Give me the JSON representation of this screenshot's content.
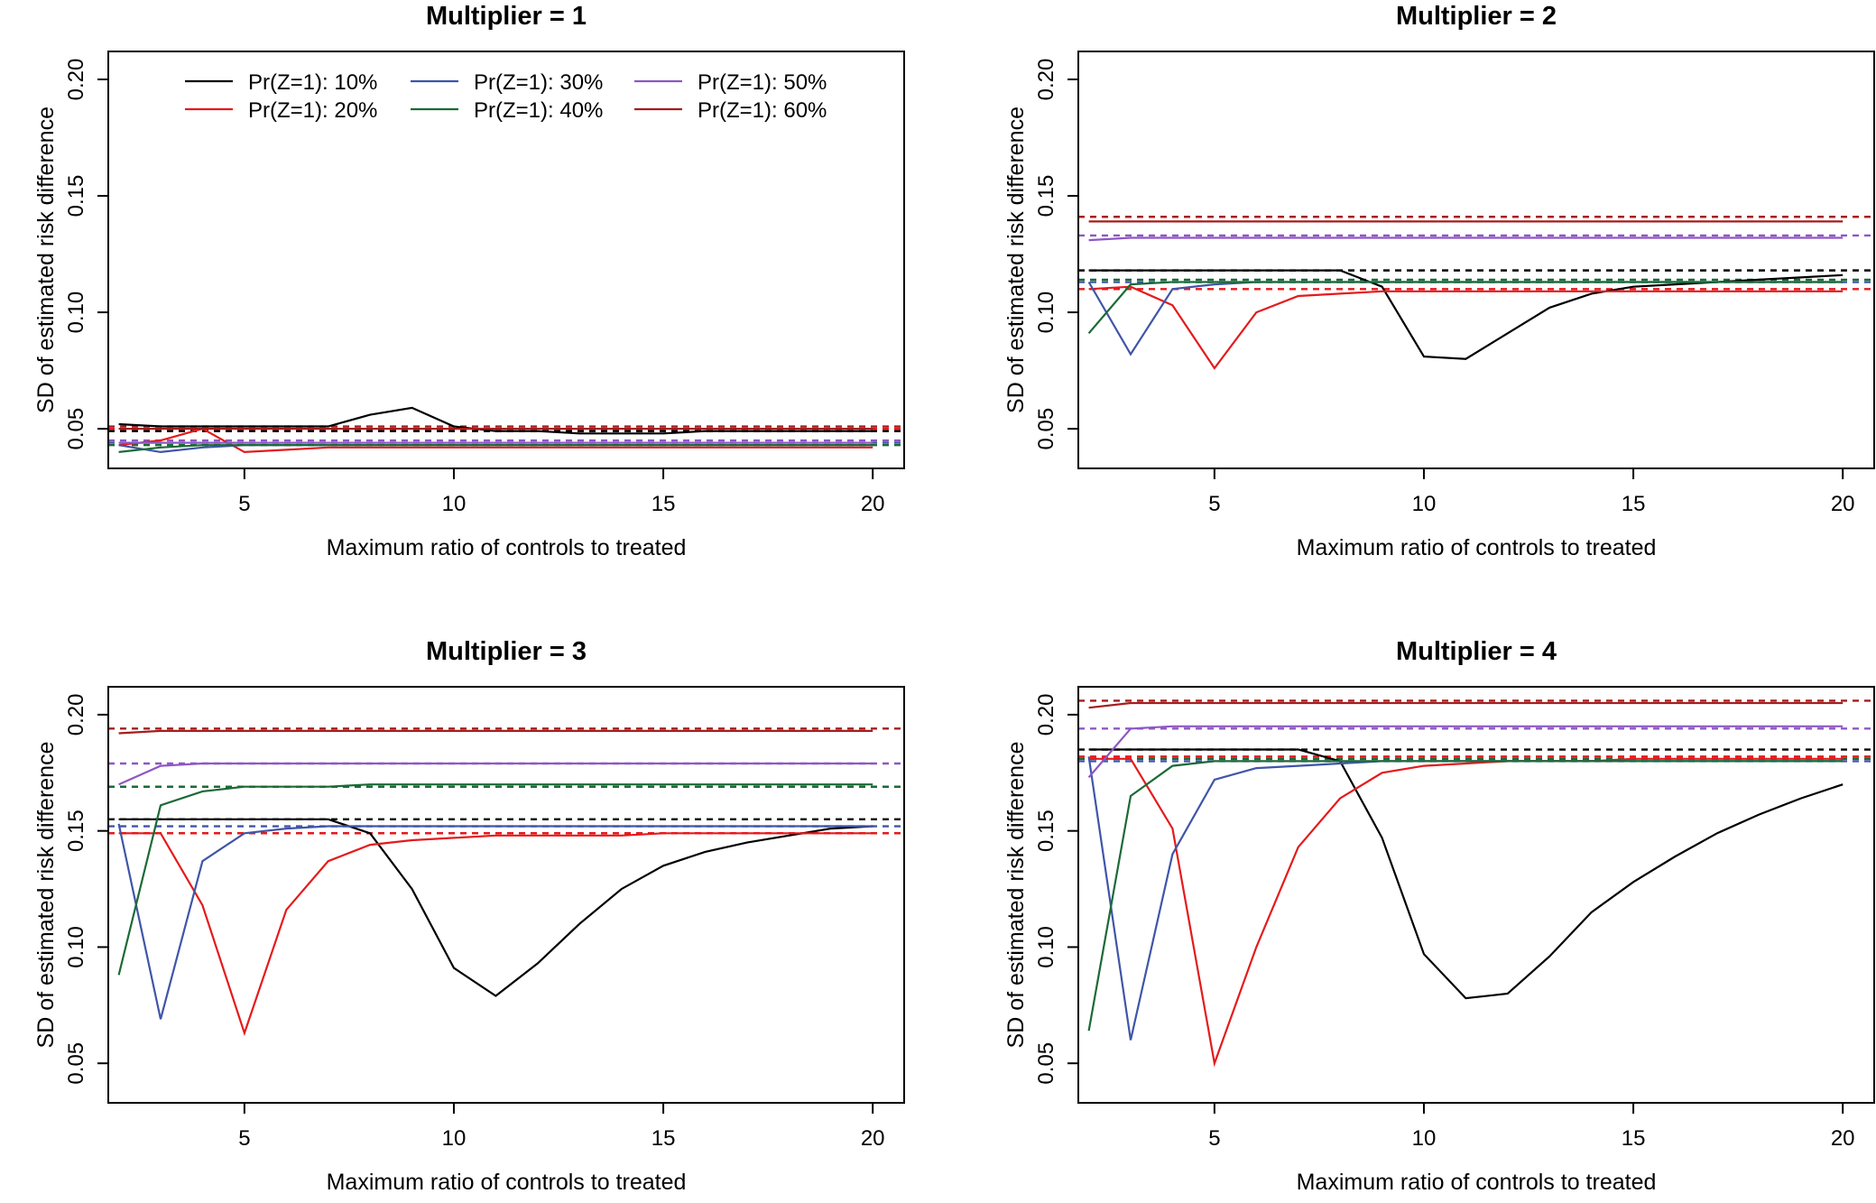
{
  "chart_data": [
    {
      "type": "line",
      "title": "Multiplier = 1",
      "xlabel": "Maximum ratio of controls to treated",
      "ylabel": "SD of estimated risk difference",
      "xlim": [
        1.75,
        20.75
      ],
      "ylim": [
        0.033,
        0.212
      ],
      "xticks": [
        "5",
        "10",
        "15",
        "20"
      ],
      "yticks": [
        "0.05",
        "0.10",
        "0.15",
        "0.20"
      ],
      "legend_position": "top",
      "x": [
        2,
        3,
        4,
        5,
        6,
        7,
        8,
        9,
        10,
        11,
        12,
        13,
        14,
        15,
        16,
        17,
        18,
        19,
        20
      ],
      "series": [
        {
          "name": "Pr(Z=1): 10%",
          "color": "#000000",
          "reference": 0.049,
          "values": [
            0.052,
            0.051,
            0.051,
            0.051,
            0.051,
            0.051,
            0.056,
            0.059,
            0.051,
            0.049,
            0.049,
            0.048,
            0.048,
            0.048,
            0.049,
            0.049,
            0.049,
            0.049,
            0.049
          ]
        },
        {
          "name": "Pr(Z=1): 20%",
          "color": "#E41A1C",
          "reference": 0.05,
          "values": [
            0.043,
            0.045,
            0.05,
            0.04,
            0.041,
            0.042,
            0.042,
            0.042,
            0.042,
            0.042,
            0.042,
            0.042,
            0.042,
            0.042,
            0.042,
            0.042,
            0.042,
            0.042,
            0.042
          ]
        },
        {
          "name": "Pr(Z=1): 30%",
          "color": "#3F55A8",
          "reference": 0.044,
          "values": [
            0.043,
            0.04,
            0.042,
            0.043,
            0.043,
            0.043,
            0.043,
            0.043,
            0.043,
            0.043,
            0.043,
            0.043,
            0.043,
            0.043,
            0.043,
            0.043,
            0.043,
            0.043,
            0.043
          ]
        },
        {
          "name": "Pr(Z=1): 40%",
          "color": "#1B6A36",
          "reference": 0.043,
          "values": [
            0.04,
            0.042,
            0.043,
            0.043,
            0.043,
            0.043,
            0.043,
            0.043,
            0.043,
            0.043,
            0.043,
            0.043,
            0.043,
            0.043,
            0.043,
            0.043,
            0.043,
            0.043,
            0.043
          ]
        },
        {
          "name": "Pr(Z=1): 50%",
          "color": "#8E57C4",
          "reference": 0.045,
          "values": [
            0.044,
            0.044,
            0.044,
            0.044,
            0.044,
            0.044,
            0.044,
            0.044,
            0.044,
            0.044,
            0.044,
            0.044,
            0.044,
            0.044,
            0.044,
            0.044,
            0.044,
            0.044,
            0.044
          ]
        },
        {
          "name": "Pr(Z=1): 60%",
          "color": "#A51C1C",
          "reference": 0.051,
          "values": [
            0.05,
            0.05,
            0.05,
            0.05,
            0.05,
            0.05,
            0.05,
            0.05,
            0.05,
            0.05,
            0.05,
            0.05,
            0.05,
            0.05,
            0.05,
            0.05,
            0.05,
            0.05,
            0.05
          ]
        }
      ]
    },
    {
      "type": "line",
      "title": "Multiplier = 2",
      "xlabel": "Maximum ratio of controls to treated",
      "ylabel": "SD of estimated risk difference",
      "xlim": [
        1.75,
        20.75
      ],
      "ylim": [
        0.033,
        0.212
      ],
      "xticks": [
        "5",
        "10",
        "15",
        "20"
      ],
      "yticks": [
        "0.05",
        "0.10",
        "0.15",
        "0.20"
      ],
      "x": [
        2,
        3,
        4,
        5,
        6,
        7,
        8,
        9,
        10,
        11,
        12,
        13,
        14,
        15,
        16,
        17,
        18,
        19,
        20
      ],
      "series": [
        {
          "name": "Pr(Z=1): 10%",
          "color": "#000000",
          "reference": 0.118,
          "values": [
            0.118,
            0.118,
            0.118,
            0.118,
            0.118,
            0.118,
            0.118,
            0.111,
            0.081,
            0.08,
            0.091,
            0.102,
            0.108,
            0.111,
            0.112,
            0.113,
            0.114,
            0.115,
            0.116
          ]
        },
        {
          "name": "Pr(Z=1): 20%",
          "color": "#E41A1C",
          "reference": 0.11,
          "values": [
            0.11,
            0.111,
            0.103,
            0.076,
            0.1,
            0.107,
            0.108,
            0.109,
            0.109,
            0.109,
            0.109,
            0.109,
            0.109,
            0.109,
            0.109,
            0.109,
            0.109,
            0.109,
            0.109
          ]
        },
        {
          "name": "Pr(Z=1): 30%",
          "color": "#3F55A8",
          "reference": 0.113,
          "values": [
            0.113,
            0.082,
            0.11,
            0.112,
            0.113,
            0.113,
            0.113,
            0.113,
            0.113,
            0.113,
            0.113,
            0.113,
            0.113,
            0.113,
            0.113,
            0.113,
            0.113,
            0.113,
            0.113
          ]
        },
        {
          "name": "Pr(Z=1): 40%",
          "color": "#1B6A36",
          "reference": 0.114,
          "values": [
            0.091,
            0.112,
            0.113,
            0.113,
            0.113,
            0.113,
            0.113,
            0.113,
            0.113,
            0.113,
            0.113,
            0.113,
            0.113,
            0.113,
            0.113,
            0.113,
            0.113,
            0.113,
            0.113
          ]
        },
        {
          "name": "Pr(Z=1): 50%",
          "color": "#8E57C4",
          "reference": 0.133,
          "values": [
            0.131,
            0.132,
            0.132,
            0.132,
            0.132,
            0.132,
            0.132,
            0.132,
            0.132,
            0.132,
            0.132,
            0.132,
            0.132,
            0.132,
            0.132,
            0.132,
            0.132,
            0.132,
            0.132
          ]
        },
        {
          "name": "Pr(Z=1): 60%",
          "color": "#A51C1C",
          "reference": 0.141,
          "values": [
            0.139,
            0.139,
            0.139,
            0.139,
            0.139,
            0.139,
            0.139,
            0.139,
            0.139,
            0.139,
            0.139,
            0.139,
            0.139,
            0.139,
            0.139,
            0.139,
            0.139,
            0.139,
            0.139
          ]
        }
      ]
    },
    {
      "type": "line",
      "title": "Multiplier = 3",
      "xlabel": "Maximum ratio of controls to treated",
      "ylabel": "SD of estimated risk difference",
      "xlim": [
        1.75,
        20.75
      ],
      "ylim": [
        0.033,
        0.212
      ],
      "xticks": [
        "5",
        "10",
        "15",
        "20"
      ],
      "yticks": [
        "0.05",
        "0.10",
        "0.15",
        "0.20"
      ],
      "x": [
        2,
        3,
        4,
        5,
        6,
        7,
        8,
        9,
        10,
        11,
        12,
        13,
        14,
        15,
        16,
        17,
        18,
        19,
        20
      ],
      "series": [
        {
          "name": "Pr(Z=1): 10%",
          "color": "#000000",
          "reference": 0.155,
          "values": [
            0.155,
            0.155,
            0.155,
            0.155,
            0.155,
            0.155,
            0.149,
            0.125,
            0.091,
            0.079,
            0.093,
            0.11,
            0.125,
            0.135,
            0.141,
            0.145,
            0.148,
            0.151,
            0.152
          ]
        },
        {
          "name": "Pr(Z=1): 20%",
          "color": "#E41A1C",
          "reference": 0.149,
          "values": [
            0.149,
            0.149,
            0.118,
            0.063,
            0.116,
            0.137,
            0.144,
            0.146,
            0.147,
            0.148,
            0.148,
            0.148,
            0.148,
            0.149,
            0.149,
            0.149,
            0.149,
            0.149,
            0.149
          ]
        },
        {
          "name": "Pr(Z=1): 30%",
          "color": "#3F55A8",
          "reference": 0.152,
          "values": [
            0.153,
            0.069,
            0.137,
            0.149,
            0.151,
            0.152,
            0.152,
            0.152,
            0.152,
            0.152,
            0.152,
            0.152,
            0.152,
            0.152,
            0.152,
            0.152,
            0.152,
            0.152,
            0.152
          ]
        },
        {
          "name": "Pr(Z=1): 40%",
          "color": "#1B6A36",
          "reference": 0.169,
          "values": [
            0.088,
            0.161,
            0.167,
            0.169,
            0.169,
            0.169,
            0.17,
            0.17,
            0.17,
            0.17,
            0.17,
            0.17,
            0.17,
            0.17,
            0.17,
            0.17,
            0.17,
            0.17,
            0.17
          ]
        },
        {
          "name": "Pr(Z=1): 50%",
          "color": "#8E57C4",
          "reference": 0.179,
          "values": [
            0.17,
            0.178,
            0.179,
            0.179,
            0.179,
            0.179,
            0.179,
            0.179,
            0.179,
            0.179,
            0.179,
            0.179,
            0.179,
            0.179,
            0.179,
            0.179,
            0.179,
            0.179,
            0.179
          ]
        },
        {
          "name": "Pr(Z=1): 60%",
          "color": "#A51C1C",
          "reference": 0.194,
          "values": [
            0.192,
            0.193,
            0.193,
            0.193,
            0.193,
            0.193,
            0.193,
            0.193,
            0.193,
            0.193,
            0.193,
            0.193,
            0.193,
            0.193,
            0.193,
            0.193,
            0.193,
            0.193,
            0.193
          ]
        }
      ]
    },
    {
      "type": "line",
      "title": "Multiplier = 4",
      "xlabel": "Maximum ratio of controls to treated",
      "ylabel": "SD of estimated risk difference",
      "xlim": [
        1.75,
        20.75
      ],
      "ylim": [
        0.033,
        0.212
      ],
      "xticks": [
        "5",
        "10",
        "15",
        "20"
      ],
      "yticks": [
        "0.05",
        "0.10",
        "0.15",
        "0.20"
      ],
      "x": [
        2,
        3,
        4,
        5,
        6,
        7,
        8,
        9,
        10,
        11,
        12,
        13,
        14,
        15,
        16,
        17,
        18,
        19,
        20
      ],
      "series": [
        {
          "name": "Pr(Z=1): 10%",
          "color": "#000000",
          "reference": 0.185,
          "values": [
            0.185,
            0.185,
            0.185,
            0.185,
            0.185,
            0.185,
            0.18,
            0.147,
            0.097,
            0.078,
            0.08,
            0.096,
            0.115,
            0.128,
            0.139,
            0.149,
            0.157,
            0.164,
            0.17
          ]
        },
        {
          "name": "Pr(Z=1): 20%",
          "color": "#E41A1C",
          "reference": 0.182,
          "values": [
            0.181,
            0.181,
            0.151,
            0.05,
            0.1,
            0.143,
            0.164,
            0.175,
            0.178,
            0.179,
            0.18,
            0.18,
            0.18,
            0.181,
            0.181,
            0.181,
            0.181,
            0.181,
            0.181
          ]
        },
        {
          "name": "Pr(Z=1): 30%",
          "color": "#3F55A8",
          "reference": 0.18,
          "values": [
            0.182,
            0.06,
            0.14,
            0.172,
            0.177,
            0.178,
            0.179,
            0.18,
            0.18,
            0.18,
            0.18,
            0.18,
            0.18,
            0.18,
            0.18,
            0.18,
            0.18,
            0.18,
            0.18
          ]
        },
        {
          "name": "Pr(Z=1): 40%",
          "color": "#1B6A36",
          "reference": 0.181,
          "values": [
            0.064,
            0.165,
            0.178,
            0.18,
            0.18,
            0.18,
            0.18,
            0.18,
            0.18,
            0.18,
            0.18,
            0.18,
            0.18,
            0.18,
            0.18,
            0.18,
            0.18,
            0.18,
            0.18
          ]
        },
        {
          "name": "Pr(Z=1): 50%",
          "color": "#8E57C4",
          "reference": 0.194,
          "values": [
            0.173,
            0.194,
            0.195,
            0.195,
            0.195,
            0.195,
            0.195,
            0.195,
            0.195,
            0.195,
            0.195,
            0.195,
            0.195,
            0.195,
            0.195,
            0.195,
            0.195,
            0.195,
            0.195
          ]
        },
        {
          "name": "Pr(Z=1): 60%",
          "color": "#A51C1C",
          "reference": 0.206,
          "values": [
            0.203,
            0.205,
            0.205,
            0.205,
            0.205,
            0.205,
            0.205,
            0.205,
            0.205,
            0.205,
            0.205,
            0.205,
            0.205,
            0.205,
            0.205,
            0.205,
            0.205,
            0.205,
            0.205
          ]
        }
      ]
    }
  ]
}
